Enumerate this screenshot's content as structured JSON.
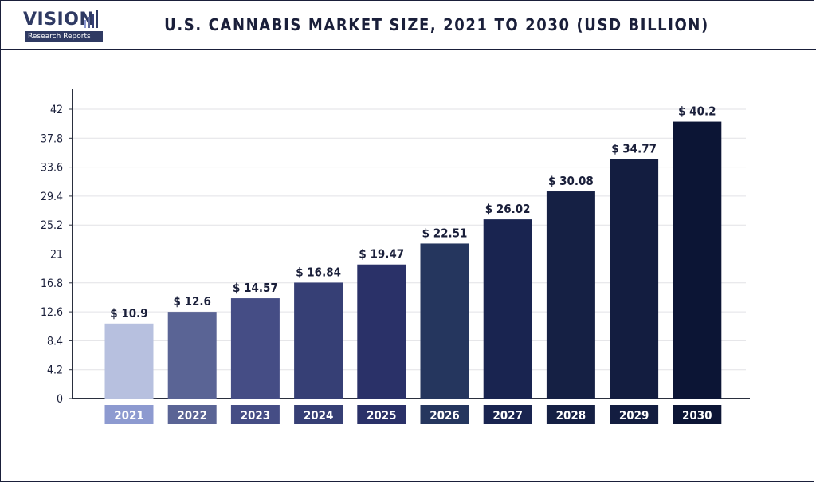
{
  "header": {
    "logo_brand": "VISION",
    "logo_sub": "Research Reports"
  },
  "colors": {
    "axis": "#2a2f3e",
    "grid": "#e2e2e6",
    "label_text": "#1a1f3a",
    "tick_label_text": "#ffffff",
    "bars": [
      "#b7c0df",
      "#5a6495",
      "#454d85",
      "#363f75",
      "#2a3168",
      "#25365e",
      "#192450",
      "#152044",
      "#131d40",
      "#0c1535"
    ],
    "tick_boxes": [
      "#8d9ad0",
      "#5a6495",
      "#454d85",
      "#363f75",
      "#2a3168",
      "#25365e",
      "#192450",
      "#152044",
      "#131d40",
      "#0c1535"
    ]
  },
  "chart_data": {
    "type": "bar",
    "title": "U.S. CANNABIS MARKET SIZE, 2021 TO 2030 (USD BILLION)",
    "xlabel": "",
    "ylabel": "",
    "categories": [
      "2021",
      "2022",
      "2023",
      "2024",
      "2025",
      "2026",
      "2027",
      "2028",
      "2029",
      "2030"
    ],
    "values": [
      10.9,
      12.6,
      14.57,
      16.84,
      19.47,
      22.51,
      26.02,
      30.08,
      34.77,
      40.2
    ],
    "value_labels": [
      "$ 10.9",
      "$ 12.6",
      "$ 14.57",
      "$ 16.84",
      "$ 19.47",
      "$ 22.51",
      "$ 26.02",
      "$ 30.08",
      "$ 34.77",
      "$ 40.2"
    ],
    "ylim": [
      0,
      42
    ],
    "yticks": [
      0,
      4.2,
      8.4,
      12.6,
      16.8,
      21,
      25.2,
      29.4,
      33.6,
      37.8,
      42
    ],
    "ytick_labels": [
      "0",
      "4.2",
      "8.4",
      "12.6",
      "16.8",
      "21",
      "25.2",
      "29.4",
      "33.6",
      "37.8",
      "42"
    ],
    "grid": true,
    "legend": "none"
  }
}
